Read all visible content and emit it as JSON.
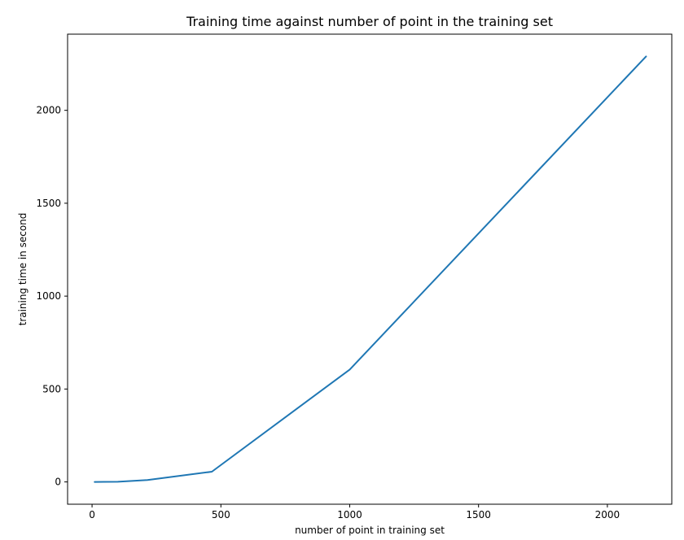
{
  "chart_data": {
    "type": "line",
    "title": "Training time against number of point in the training set",
    "xlabel": "number of point in training set",
    "ylabel": "training time in second",
    "xlim": [
      -95,
      2250
    ],
    "ylim": [
      -120,
      2410
    ],
    "xticks": [
      0,
      500,
      1000,
      1500,
      2000
    ],
    "yticks": [
      0,
      500,
      1000,
      1500,
      2000
    ],
    "grid": false,
    "legend": "none",
    "series": [
      {
        "color": "#1f77b4",
        "x": [
          10,
          100,
          215,
          465,
          1000,
          2150
        ],
        "y": [
          0,
          1,
          10,
          55,
          605,
          2290
        ]
      }
    ]
  }
}
